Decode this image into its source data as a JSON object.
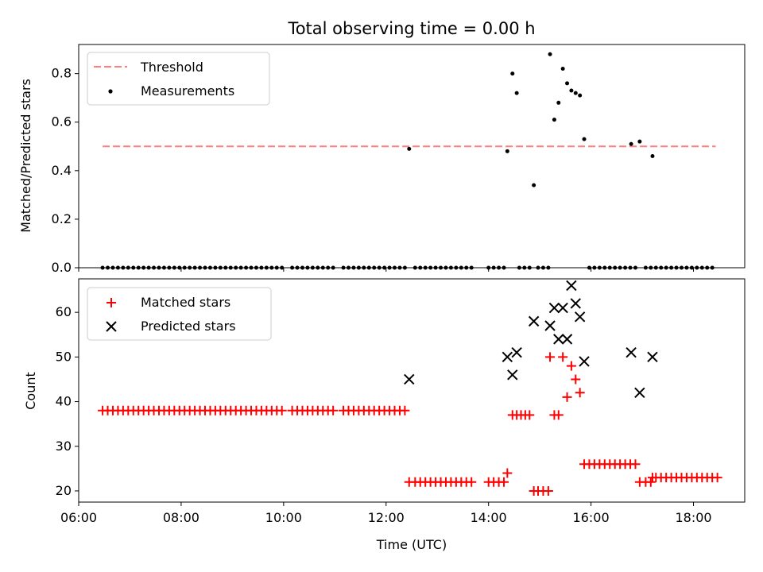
{
  "chart_data": [
    {
      "type": "scatter",
      "title": "Total observing time = 0.00 h",
      "ylabel": "Matched/Predicted stars",
      "xlabel": "",
      "xlim": [
        "06:00",
        "19:00"
      ],
      "ylim": [
        0,
        0.92
      ],
      "yticks": [
        "0.0",
        "0.2",
        "0.4",
        "0.6",
        "0.8"
      ],
      "legend": {
        "position": "top-left",
        "entries": [
          "Threshold",
          "Measurements"
        ]
      },
      "threshold": {
        "name": "Threshold",
        "color": "#ff7f7f",
        "value": 0.5,
        "x_start": "06:28",
        "x_end": "18:26"
      },
      "measurements": {
        "name": "Measurements",
        "color": "#000000",
        "zero_times": [
          "06:28",
          "06:34",
          "06:40",
          "06:46",
          "06:52",
          "06:58",
          "07:04",
          "07:10",
          "07:16",
          "07:22",
          "07:28",
          "07:34",
          "07:40",
          "07:46",
          "07:52",
          "07:58",
          "08:04",
          "08:10",
          "08:16",
          "08:22",
          "08:28",
          "08:34",
          "08:40",
          "08:46",
          "08:52",
          "08:58",
          "09:04",
          "09:10",
          "09:16",
          "09:22",
          "09:28",
          "09:34",
          "09:40",
          "09:46",
          "09:52",
          "09:58",
          "10:10",
          "10:16",
          "10:22",
          "10:28",
          "10:34",
          "10:40",
          "10:46",
          "10:52",
          "10:58",
          "11:10",
          "11:16",
          "11:22",
          "11:28",
          "11:34",
          "11:40",
          "11:46",
          "11:52",
          "11:58",
          "12:04",
          "12:10",
          "12:16",
          "12:22",
          "12:34",
          "12:40",
          "12:46",
          "12:52",
          "12:58",
          "13:04",
          "13:10",
          "13:16",
          "13:22",
          "13:28",
          "13:34",
          "13:40",
          "14:00",
          "14:06",
          "14:12",
          "14:18",
          "14:36",
          "14:42",
          "14:48",
          "14:58",
          "15:04",
          "15:10",
          "15:58",
          "16:04",
          "16:10",
          "16:16",
          "16:22",
          "16:28",
          "16:34",
          "16:40",
          "16:46",
          "16:52",
          "17:04",
          "17:10",
          "17:16",
          "17:22",
          "17:28",
          "17:34",
          "17:40",
          "17:46",
          "17:52",
          "17:58",
          "18:04",
          "18:10",
          "18:16",
          "18:22"
        ],
        "points": [
          {
            "t": "12:27",
            "v": 0.49
          },
          {
            "t": "14:22",
            "v": 0.48
          },
          {
            "t": "14:28",
            "v": 0.8
          },
          {
            "t": "14:33",
            "v": 0.72
          },
          {
            "t": "14:53",
            "v": 0.34
          },
          {
            "t": "15:12",
            "v": 0.88
          },
          {
            "t": "15:17",
            "v": 0.61
          },
          {
            "t": "15:22",
            "v": 0.68
          },
          {
            "t": "15:27",
            "v": 0.82
          },
          {
            "t": "15:32",
            "v": 0.76
          },
          {
            "t": "15:37",
            "v": 0.73
          },
          {
            "t": "15:42",
            "v": 0.72
          },
          {
            "t": "15:47",
            "v": 0.71
          },
          {
            "t": "15:52",
            "v": 0.53
          },
          {
            "t": "16:47",
            "v": 0.51
          },
          {
            "t": "16:57",
            "v": 0.52
          },
          {
            "t": "17:12",
            "v": 0.46
          }
        ]
      }
    },
    {
      "type": "scatter",
      "title": "",
      "xlabel": "Time (UTC)",
      "ylabel": "Count",
      "xlim": [
        "06:00",
        "19:00"
      ],
      "ylim": [
        17.5,
        67.5
      ],
      "xticks": [
        "06:00",
        "08:00",
        "10:00",
        "12:00",
        "14:00",
        "16:00",
        "18:00"
      ],
      "yticks": [
        "20",
        "30",
        "40",
        "50",
        "60"
      ],
      "legend": {
        "position": "top-left",
        "entries": [
          "Matched stars",
          "Predicted stars"
        ]
      },
      "series": [
        {
          "name": "Matched stars",
          "marker": "plus",
          "color": "#ff0000",
          "points": [
            {
              "t": "06:28",
              "v": 38
            },
            {
              "t": "06:34",
              "v": 38
            },
            {
              "t": "06:40",
              "v": 38
            },
            {
              "t": "06:46",
              "v": 38
            },
            {
              "t": "06:52",
              "v": 38
            },
            {
              "t": "06:58",
              "v": 38
            },
            {
              "t": "07:04",
              "v": 38
            },
            {
              "t": "07:10",
              "v": 38
            },
            {
              "t": "07:16",
              "v": 38
            },
            {
              "t": "07:22",
              "v": 38
            },
            {
              "t": "07:28",
              "v": 38
            },
            {
              "t": "07:34",
              "v": 38
            },
            {
              "t": "07:40",
              "v": 38
            },
            {
              "t": "07:46",
              "v": 38
            },
            {
              "t": "07:52",
              "v": 38
            },
            {
              "t": "07:58",
              "v": 38
            },
            {
              "t": "08:04",
              "v": 38
            },
            {
              "t": "08:10",
              "v": 38
            },
            {
              "t": "08:16",
              "v": 38
            },
            {
              "t": "08:22",
              "v": 38
            },
            {
              "t": "08:28",
              "v": 38
            },
            {
              "t": "08:34",
              "v": 38
            },
            {
              "t": "08:40",
              "v": 38
            },
            {
              "t": "08:46",
              "v": 38
            },
            {
              "t": "08:52",
              "v": 38
            },
            {
              "t": "08:58",
              "v": 38
            },
            {
              "t": "09:04",
              "v": 38
            },
            {
              "t": "09:10",
              "v": 38
            },
            {
              "t": "09:16",
              "v": 38
            },
            {
              "t": "09:22",
              "v": 38
            },
            {
              "t": "09:28",
              "v": 38
            },
            {
              "t": "09:34",
              "v": 38
            },
            {
              "t": "09:40",
              "v": 38
            },
            {
              "t": "09:46",
              "v": 38
            },
            {
              "t": "09:52",
              "v": 38
            },
            {
              "t": "09:58",
              "v": 38
            },
            {
              "t": "10:10",
              "v": 38
            },
            {
              "t": "10:16",
              "v": 38
            },
            {
              "t": "10:22",
              "v": 38
            },
            {
              "t": "10:28",
              "v": 38
            },
            {
              "t": "10:34",
              "v": 38
            },
            {
              "t": "10:40",
              "v": 38
            },
            {
              "t": "10:46",
              "v": 38
            },
            {
              "t": "10:52",
              "v": 38
            },
            {
              "t": "10:58",
              "v": 38
            },
            {
              "t": "11:10",
              "v": 38
            },
            {
              "t": "11:16",
              "v": 38
            },
            {
              "t": "11:22",
              "v": 38
            },
            {
              "t": "11:28",
              "v": 38
            },
            {
              "t": "11:34",
              "v": 38
            },
            {
              "t": "11:40",
              "v": 38
            },
            {
              "t": "11:46",
              "v": 38
            },
            {
              "t": "11:52",
              "v": 38
            },
            {
              "t": "11:58",
              "v": 38
            },
            {
              "t": "12:04",
              "v": 38
            },
            {
              "t": "12:10",
              "v": 38
            },
            {
              "t": "12:16",
              "v": 38
            },
            {
              "t": "12:22",
              "v": 38
            },
            {
              "t": "12:27",
              "v": 22
            },
            {
              "t": "12:34",
              "v": 22
            },
            {
              "t": "12:40",
              "v": 22
            },
            {
              "t": "12:46",
              "v": 22
            },
            {
              "t": "12:52",
              "v": 22
            },
            {
              "t": "12:58",
              "v": 22
            },
            {
              "t": "13:04",
              "v": 22
            },
            {
              "t": "13:10",
              "v": 22
            },
            {
              "t": "13:16",
              "v": 22
            },
            {
              "t": "13:22",
              "v": 22
            },
            {
              "t": "13:28",
              "v": 22
            },
            {
              "t": "13:34",
              "v": 22
            },
            {
              "t": "13:40",
              "v": 22
            },
            {
              "t": "14:00",
              "v": 22
            },
            {
              "t": "14:06",
              "v": 22
            },
            {
              "t": "14:12",
              "v": 22
            },
            {
              "t": "14:18",
              "v": 22
            },
            {
              "t": "14:22",
              "v": 24
            },
            {
              "t": "14:28",
              "v": 37
            },
            {
              "t": "14:33",
              "v": 37
            },
            {
              "t": "14:38",
              "v": 37
            },
            {
              "t": "14:43",
              "v": 37
            },
            {
              "t": "14:48",
              "v": 37
            },
            {
              "t": "14:53",
              "v": 20
            },
            {
              "t": "14:58",
              "v": 20
            },
            {
              "t": "15:04",
              "v": 20
            },
            {
              "t": "15:10",
              "v": 20
            },
            {
              "t": "15:12",
              "v": 50
            },
            {
              "t": "15:17",
              "v": 37
            },
            {
              "t": "15:22",
              "v": 37
            },
            {
              "t": "15:27",
              "v": 50
            },
            {
              "t": "15:32",
              "v": 41
            },
            {
              "t": "15:37",
              "v": 48
            },
            {
              "t": "15:42",
              "v": 45
            },
            {
              "t": "15:47",
              "v": 42
            },
            {
              "t": "15:52",
              "v": 26
            },
            {
              "t": "15:58",
              "v": 26
            },
            {
              "t": "16:04",
              "v": 26
            },
            {
              "t": "16:10",
              "v": 26
            },
            {
              "t": "16:16",
              "v": 26
            },
            {
              "t": "16:22",
              "v": 26
            },
            {
              "t": "16:28",
              "v": 26
            },
            {
              "t": "16:34",
              "v": 26
            },
            {
              "t": "16:40",
              "v": 26
            },
            {
              "t": "16:46",
              "v": 26
            },
            {
              "t": "16:52",
              "v": 26
            },
            {
              "t": "16:57",
              "v": 22
            },
            {
              "t": "17:04",
              "v": 22
            },
            {
              "t": "17:10",
              "v": 22
            },
            {
              "t": "17:12",
              "v": 23
            },
            {
              "t": "17:16",
              "v": 23
            },
            {
              "t": "17:22",
              "v": 23
            },
            {
              "t": "17:28",
              "v": 23
            },
            {
              "t": "17:34",
              "v": 23
            },
            {
              "t": "17:40",
              "v": 23
            },
            {
              "t": "17:46",
              "v": 23
            },
            {
              "t": "17:52",
              "v": 23
            },
            {
              "t": "17:58",
              "v": 23
            },
            {
              "t": "18:04",
              "v": 23
            },
            {
              "t": "18:10",
              "v": 23
            },
            {
              "t": "18:16",
              "v": 23
            },
            {
              "t": "18:22",
              "v": 23
            },
            {
              "t": "18:28",
              "v": 23
            }
          ]
        },
        {
          "name": "Predicted stars",
          "marker": "x",
          "color": "#000000",
          "points": [
            {
              "t": "12:27",
              "v": 45
            },
            {
              "t": "14:22",
              "v": 50
            },
            {
              "t": "14:28",
              "v": 46
            },
            {
              "t": "14:33",
              "v": 51
            },
            {
              "t": "14:53",
              "v": 58
            },
            {
              "t": "15:12",
              "v": 57
            },
            {
              "t": "15:17",
              "v": 61
            },
            {
              "t": "15:22",
              "v": 54
            },
            {
              "t": "15:27",
              "v": 61
            },
            {
              "t": "15:32",
              "v": 54
            },
            {
              "t": "15:37",
              "v": 66
            },
            {
              "t": "15:42",
              "v": 62
            },
            {
              "t": "15:47",
              "v": 59
            },
            {
              "t": "15:52",
              "v": 49
            },
            {
              "t": "16:47",
              "v": 51
            },
            {
              "t": "16:57",
              "v": 42
            },
            {
              "t": "17:12",
              "v": 50
            }
          ]
        }
      ]
    }
  ]
}
